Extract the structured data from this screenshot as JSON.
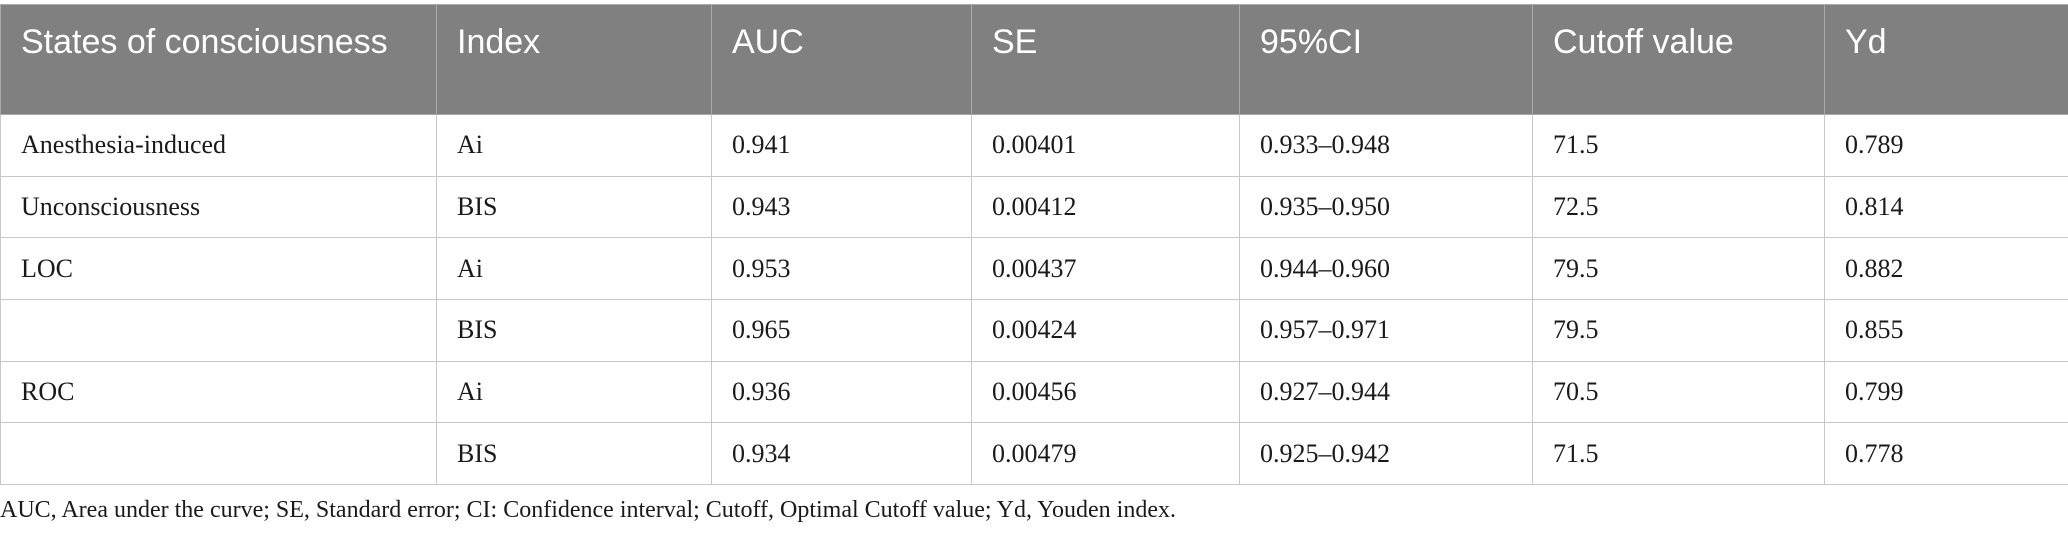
{
  "table": {
    "headers": [
      "States of consciousness",
      "Index",
      "AUC",
      "SE",
      "95%CI",
      "Cutoff value",
      "Yd"
    ],
    "rows": [
      [
        "Anesthesia-induced",
        "Ai",
        "0.941",
        "0.00401",
        "0.933–0.948",
        "71.5",
        "0.789"
      ],
      [
        "Unconsciousness",
        "BIS",
        "0.943",
        "0.00412",
        "0.935–0.950",
        "72.5",
        "0.814"
      ],
      [
        "LOC",
        "Ai",
        "0.953",
        "0.00437",
        "0.944–0.960",
        "79.5",
        "0.882"
      ],
      [
        "",
        "BIS",
        "0.965",
        "0.00424",
        "0.957–0.971",
        "79.5",
        "0.855"
      ],
      [
        "ROC",
        "Ai",
        "0.936",
        "0.00456",
        "0.927–0.944",
        "70.5",
        "0.799"
      ],
      [
        "",
        "BIS",
        "0.934",
        "0.00479",
        "0.925–0.942",
        "71.5",
        "0.778"
      ]
    ]
  },
  "footnote": "AUC, Area under the curve; SE, Standard error; CI: Confidence interval; Cutoff, Optimal Cutoff value; Yd, Youden index.",
  "colors": {
    "header_bg": "#808080",
    "header_text": "#ffffff",
    "grid": "#c8c8c8"
  }
}
